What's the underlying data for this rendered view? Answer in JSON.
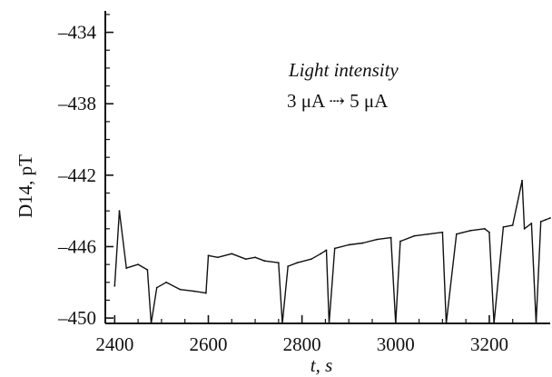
{
  "chart_data": {
    "type": "line",
    "title": "",
    "xlabel": "t, s",
    "ylabel": "D14, pT",
    "xlim": [
      2380,
      3330
    ],
    "ylim": [
      -450.3,
      -432.8
    ],
    "x_ticks": [
      2400,
      2600,
      2800,
      3000,
      3200
    ],
    "y_ticks": [
      -434,
      -438,
      -442,
      -446,
      -450
    ],
    "x_tick_labels": [
      "2400",
      "2600",
      "2800",
      "3000",
      "3200"
    ],
    "y_tick_labels": [
      "–434",
      "–438",
      "–442",
      "–446",
      "–450"
    ],
    "annotations": [
      {
        "text": "Light intensity",
        "style": "italic"
      },
      {
        "text": "3 μA ⇢ 5 μA",
        "style": "normal"
      }
    ],
    "series": [
      {
        "color": "#111111",
        "x": [
          2400,
          2410,
          2425,
          2450,
          2470,
          2478,
          2490,
          2510,
          2540,
          2570,
          2595,
          2600,
          2620,
          2650,
          2680,
          2700,
          2720,
          2750,
          2758,
          2770,
          2790,
          2820,
          2840,
          2852,
          2858,
          2870,
          2900,
          2930,
          2960,
          2990,
          3000,
          3010,
          3040,
          3070,
          3100,
          3108,
          3130,
          3160,
          3190,
          3200,
          3210,
          3230,
          3250,
          3270,
          3275,
          3290,
          3300,
          3310,
          3320,
          3330
        ],
        "y": [
          -448.2,
          -444.0,
          -447.2,
          -447.0,
          -447.3,
          -450.3,
          -448.3,
          -448.0,
          -448.4,
          -448.5,
          -448.6,
          -446.5,
          -446.6,
          -446.4,
          -446.7,
          -446.6,
          -446.8,
          -446.9,
          -450.3,
          -447.1,
          -446.9,
          -446.7,
          -446.4,
          -446.2,
          -450.3,
          -446.1,
          -445.9,
          -445.8,
          -445.6,
          -445.5,
          -450.3,
          -445.7,
          -445.4,
          -445.3,
          -445.2,
          -450.3,
          -445.3,
          -445.1,
          -445.0,
          -445.2,
          -450.3,
          -444.9,
          -444.8,
          -442.3,
          -445.0,
          -444.7,
          -450.3,
          -444.6,
          -444.5,
          -444.4
        ]
      }
    ]
  }
}
